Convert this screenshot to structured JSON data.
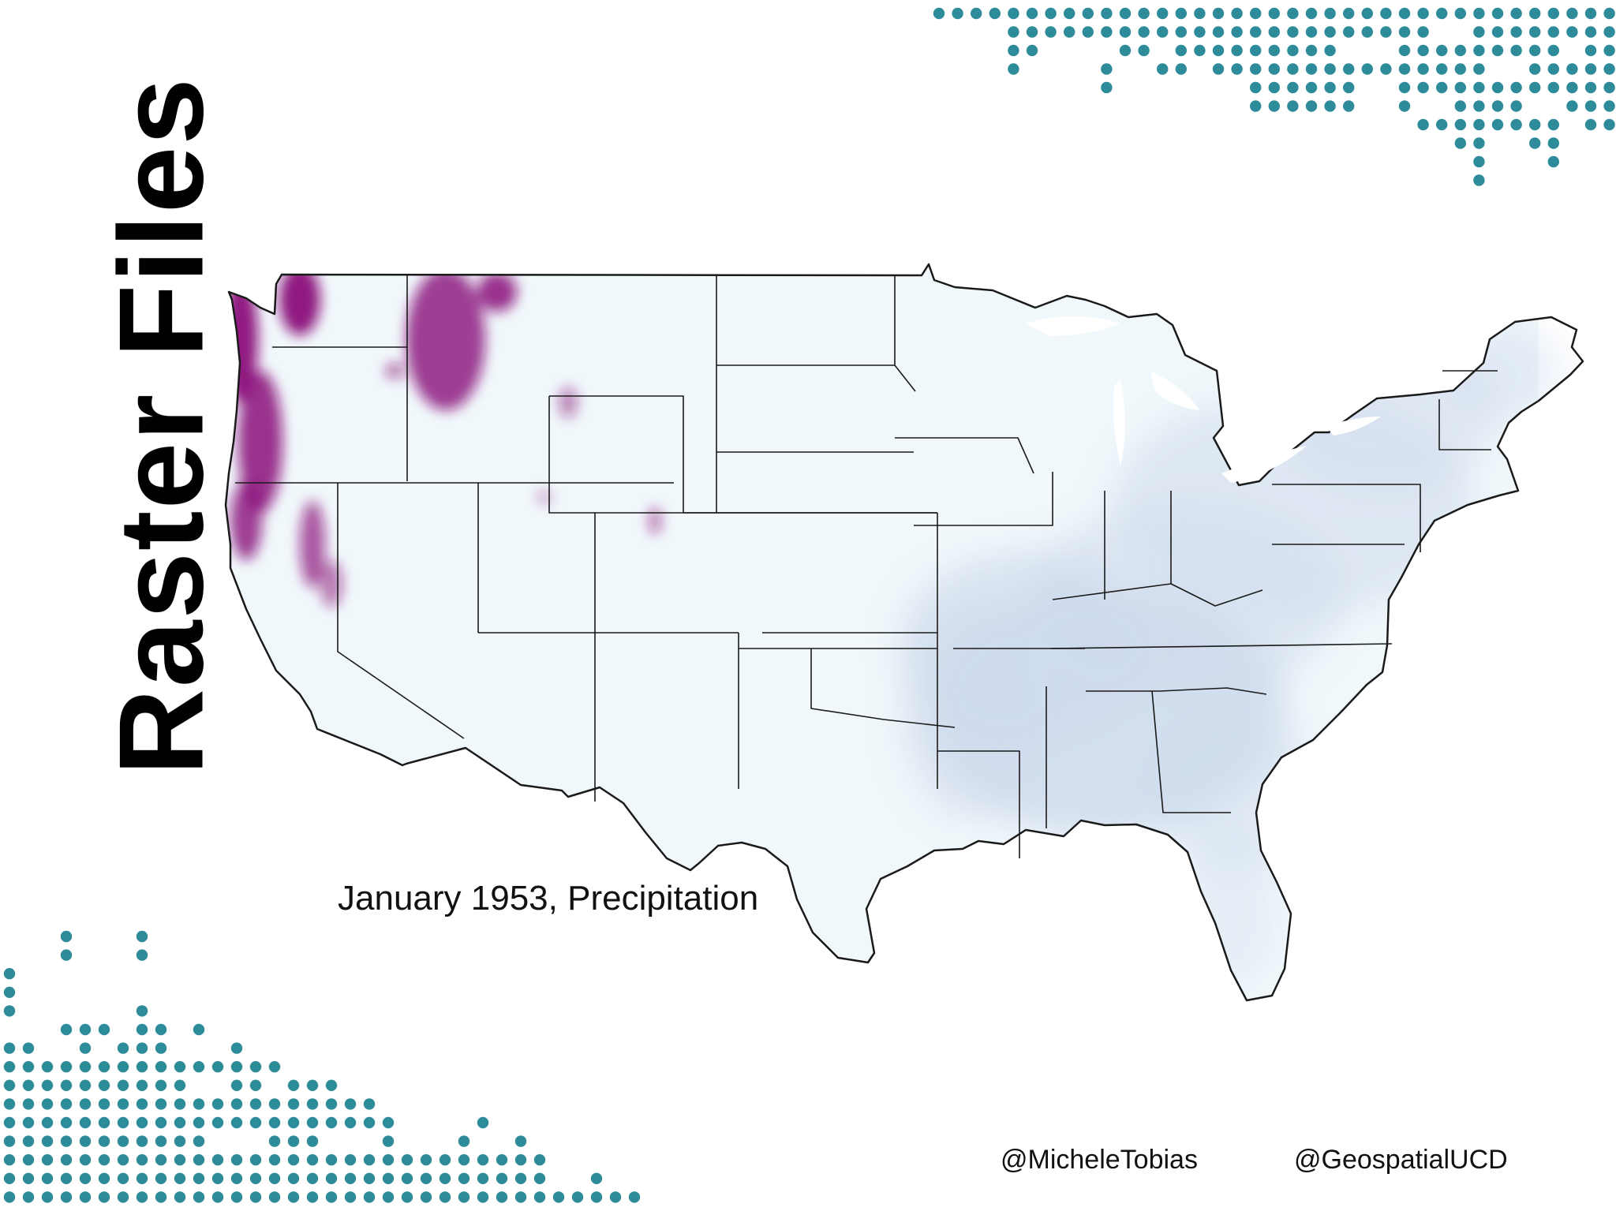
{
  "slide": {
    "title": "Raster Files",
    "map_caption": "January 1953, Precipitation",
    "handles": [
      "@MicheleTobias",
      "@GeospatialUCD"
    ]
  },
  "map": {
    "region": "Contiguous United States",
    "variable": "Precipitation",
    "period": "January 1953",
    "colors": {
      "low": "#f1f8fb",
      "mid": "#c9d6ea",
      "high": "#8a107a",
      "border": "#1a1a1a"
    }
  },
  "decoration": {
    "dot_color": "#2e8b9a",
    "background": "#ffffff"
  }
}
